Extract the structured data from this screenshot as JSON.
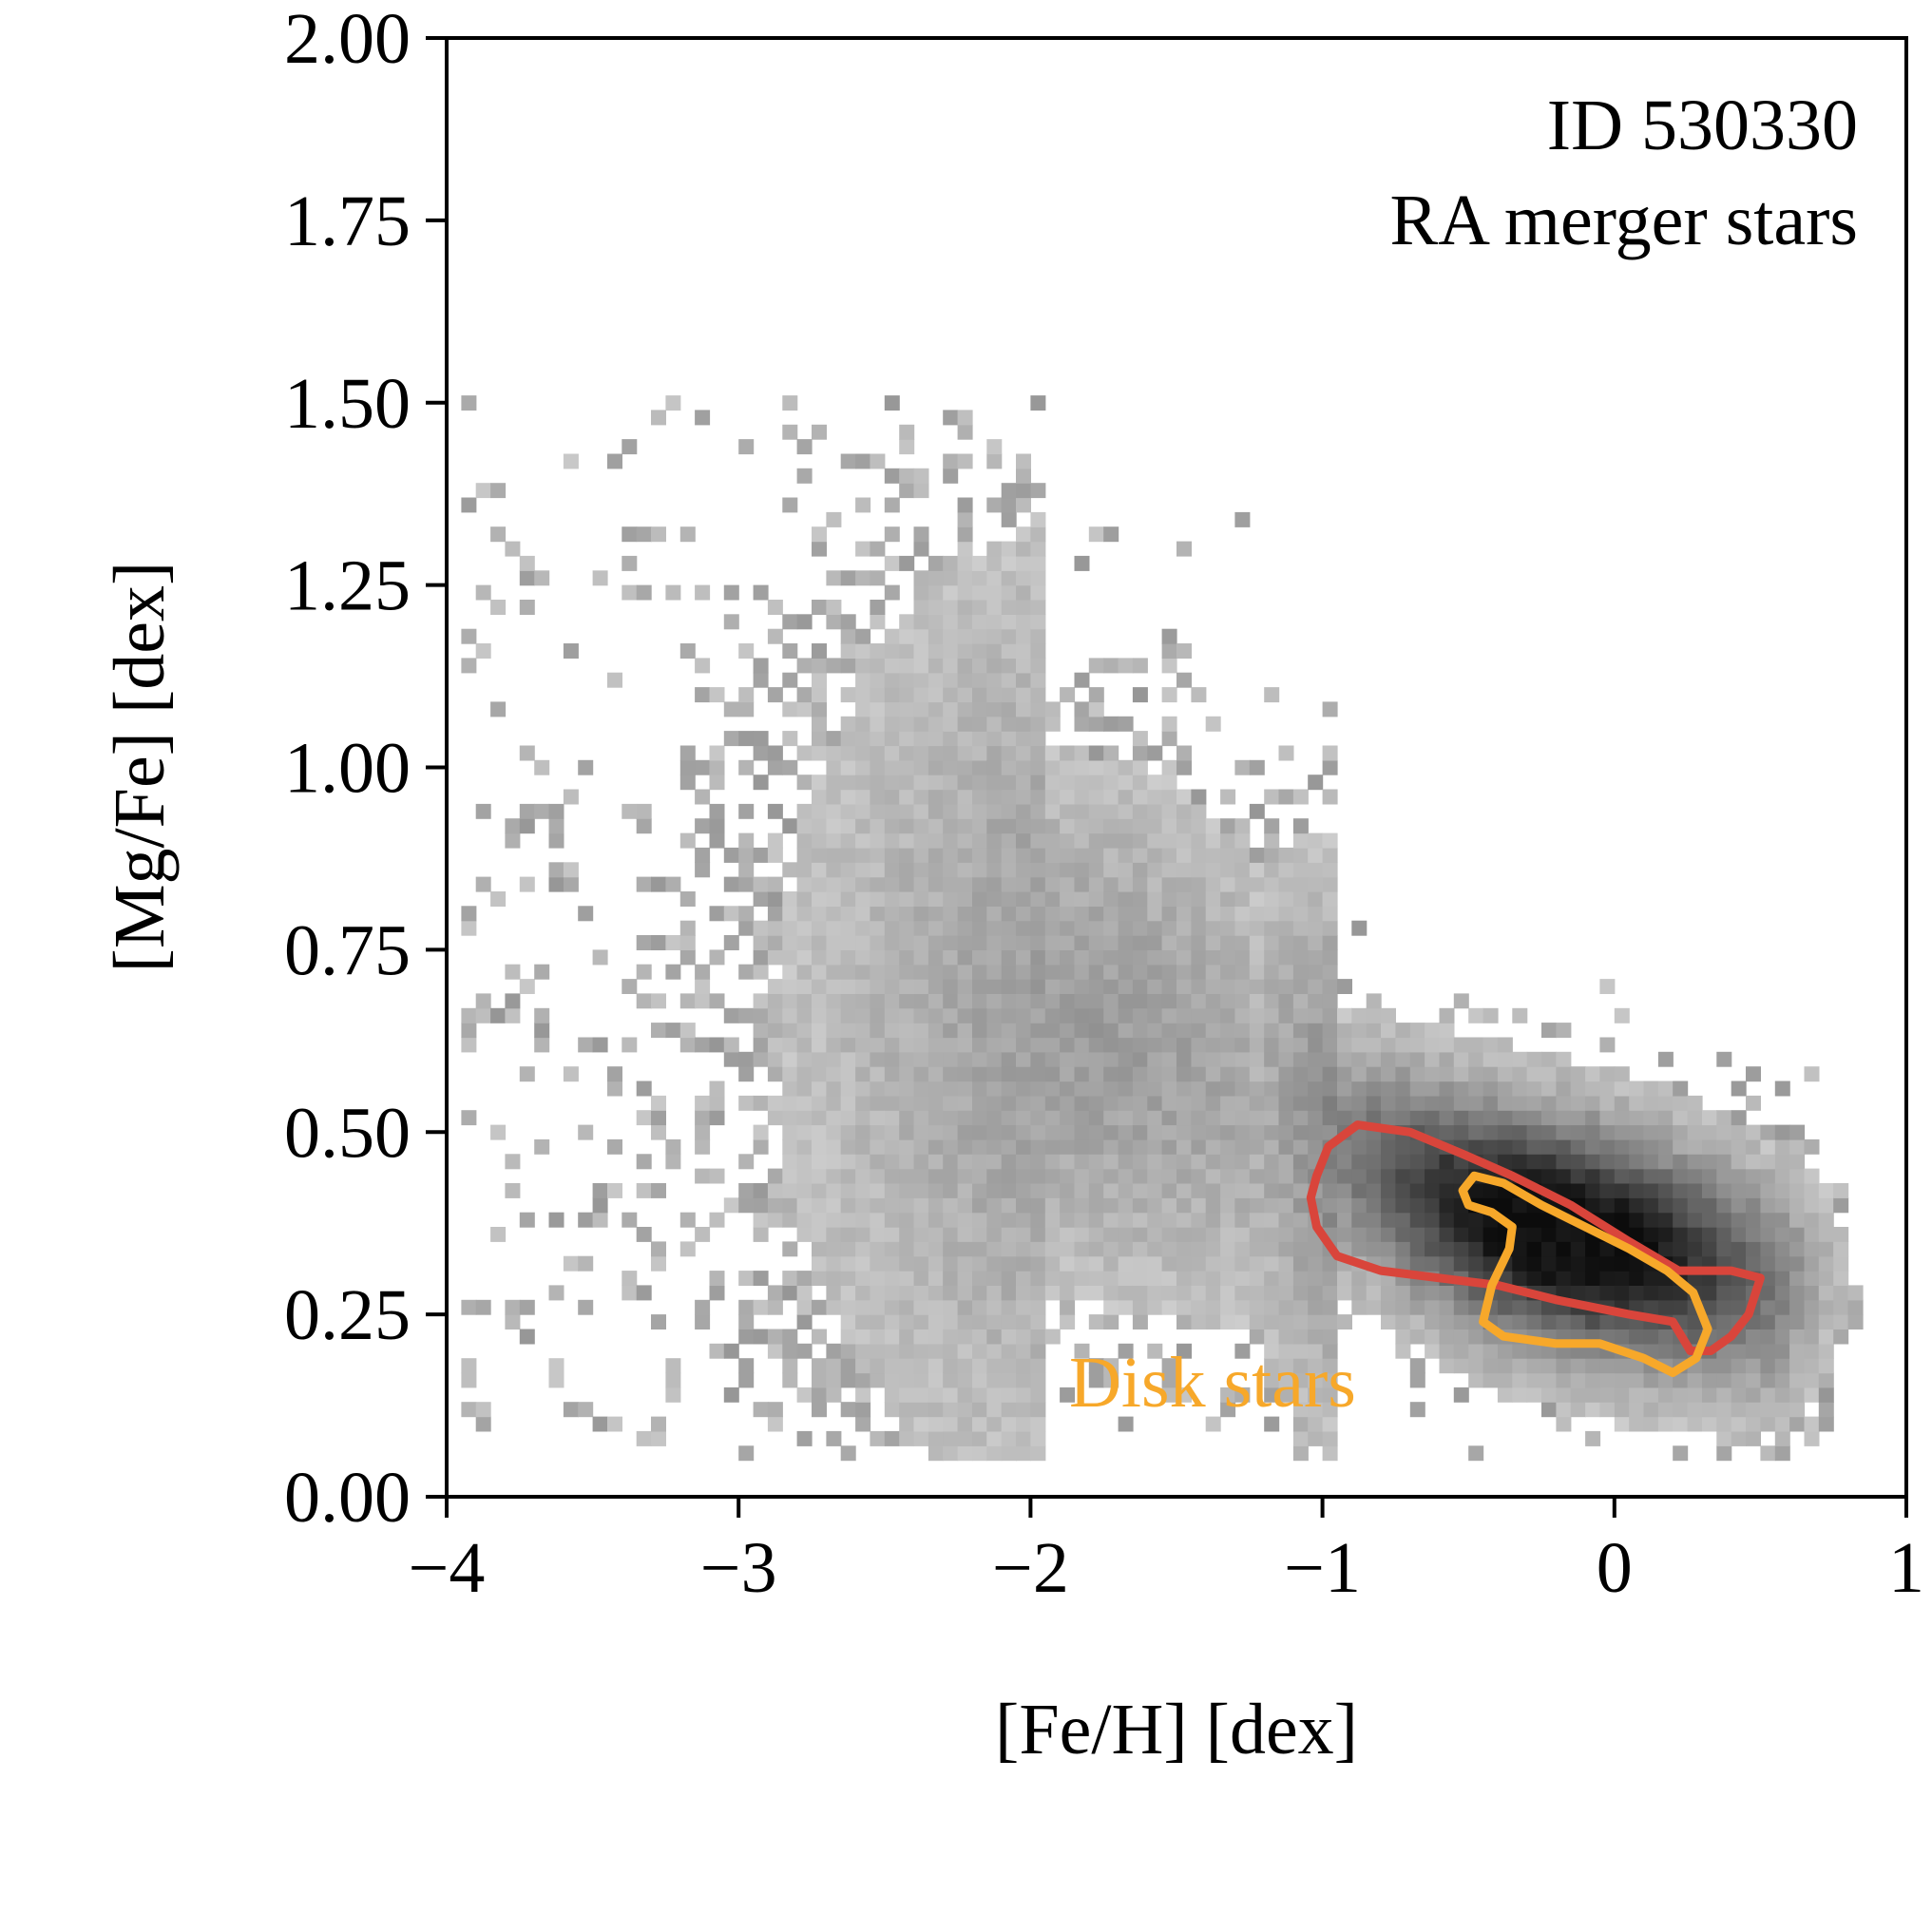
{
  "chart_data": {
    "type": "heatmap",
    "title": "",
    "xlabel": "[Fe/H] [dex]",
    "ylabel": "[Mg/Fe] [dex]",
    "xlim": [
      -4,
      1
    ],
    "ylim": [
      0,
      2
    ],
    "xticks": [
      -4,
      -3,
      -2,
      -1,
      0,
      1
    ],
    "xtick_labels": [
      "−4",
      "−3",
      "−2",
      "−1",
      "0",
      "1"
    ],
    "yticks": [
      0,
      0.25,
      0.5,
      0.75,
      1.0,
      1.25,
      1.5,
      1.75,
      2.0
    ],
    "ytick_labels": [
      "0.00",
      "0.25",
      "0.50",
      "0.75",
      "1.00",
      "1.25",
      "1.50",
      "1.75",
      "2.00"
    ],
    "grid": false,
    "annotations": [
      "ID 530330",
      "RA merger stars",
      "Disk stars"
    ],
    "colors": {
      "histogram_cmap": "greys",
      "merger_contour": "#d9453b",
      "disk_contour": "#f7a82a",
      "disk_label": "#f7a82a"
    },
    "histogram_ridge": [
      {
        "feh": -3.8,
        "mgfe": 0.6
      },
      {
        "feh": -3.0,
        "mgfe": 0.62
      },
      {
        "feh": -2.0,
        "mgfe": 0.65
      },
      {
        "feh": -1.5,
        "mgfe": 0.6
      },
      {
        "feh": -1.0,
        "mgfe": 0.47
      },
      {
        "feh": -0.5,
        "mgfe": 0.38
      },
      {
        "feh": 0.0,
        "mgfe": 0.33
      },
      {
        "feh": 0.5,
        "mgfe": 0.28
      },
      {
        "feh": 0.8,
        "mgfe": 0.29
      }
    ],
    "merger_contour": [
      [
        -1.02,
        0.44
      ],
      [
        -0.98,
        0.48
      ],
      [
        -0.88,
        0.51
      ],
      [
        -0.7,
        0.5
      ],
      [
        -0.52,
        0.47
      ],
      [
        -0.35,
        0.44
      ],
      [
        -0.15,
        0.4
      ],
      [
        0.05,
        0.35
      ],
      [
        0.22,
        0.31
      ],
      [
        0.4,
        0.31
      ],
      [
        0.5,
        0.3
      ],
      [
        0.46,
        0.25
      ],
      [
        0.4,
        0.22
      ],
      [
        0.33,
        0.2
      ],
      [
        0.26,
        0.2
      ],
      [
        0.2,
        0.24
      ],
      [
        0.05,
        0.25
      ],
      [
        -0.2,
        0.27
      ],
      [
        -0.4,
        0.29
      ],
      [
        -0.6,
        0.3
      ],
      [
        -0.8,
        0.31
      ],
      [
        -0.95,
        0.33
      ],
      [
        -1.02,
        0.37
      ],
      [
        -1.04,
        0.41
      ],
      [
        -1.02,
        0.44
      ]
    ],
    "disk_contour": [
      [
        -0.52,
        0.42
      ],
      [
        -0.48,
        0.44
      ],
      [
        -0.38,
        0.43
      ],
      [
        -0.25,
        0.4
      ],
      [
        -0.1,
        0.37
      ],
      [
        0.05,
        0.34
      ],
      [
        0.18,
        0.31
      ],
      [
        0.27,
        0.28
      ],
      [
        0.32,
        0.23
      ],
      [
        0.28,
        0.19
      ],
      [
        0.2,
        0.17
      ],
      [
        0.1,
        0.19
      ],
      [
        -0.05,
        0.21
      ],
      [
        -0.2,
        0.21
      ],
      [
        -0.38,
        0.22
      ],
      [
        -0.45,
        0.24
      ],
      [
        -0.42,
        0.29
      ],
      [
        -0.36,
        0.34
      ],
      [
        -0.35,
        0.37
      ],
      [
        -0.42,
        0.39
      ],
      [
        -0.5,
        0.4
      ],
      [
        -0.52,
        0.42
      ]
    ]
  }
}
